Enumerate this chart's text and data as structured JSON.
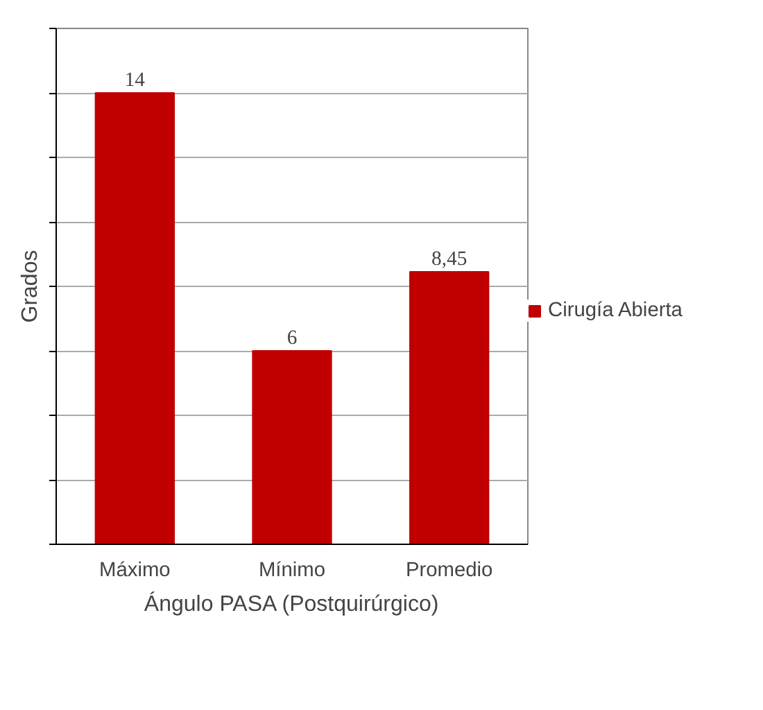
{
  "chart_data": {
    "type": "bar",
    "xlabel": "Ángulo PASA (Postquirúrgico)",
    "ylabel": "Grados",
    "categories": [
      "Máximo",
      "Mínimo",
      "Promedio"
    ],
    "series": [
      {
        "name": "Cirugía Abierta",
        "color": "#c00000",
        "values": [
          14,
          6,
          8.45
        ],
        "value_labels": [
          "14",
          "6",
          "8,45"
        ]
      }
    ],
    "ylim": [
      0,
      16
    ],
    "yticks": [
      {
        "value": 0,
        "label": null
      },
      {
        "value": 2,
        "label": null
      },
      {
        "value": 4,
        "label": null
      },
      {
        "value": 6,
        "label": null
      },
      {
        "value": 8,
        "label": null
      },
      {
        "value": 10,
        "label": null
      },
      {
        "value": 12,
        "label": null
      },
      {
        "value": 14,
        "label": null
      },
      {
        "value": 16,
        "label": null
      }
    ],
    "grid": "y",
    "legend": "right"
  }
}
